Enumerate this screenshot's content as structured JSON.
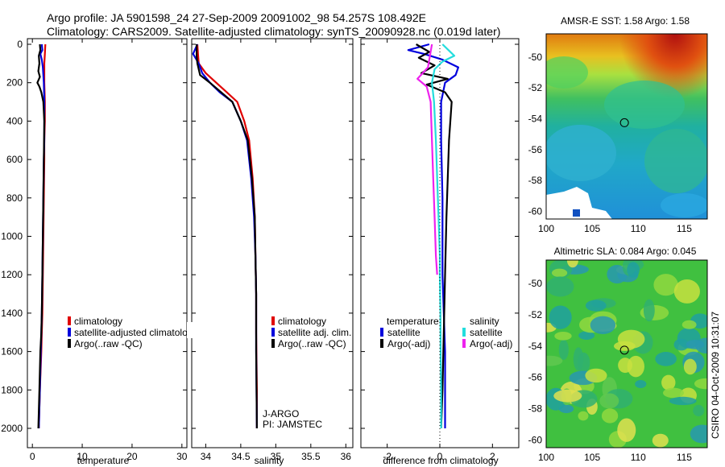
{
  "header": {
    "line1": "Argo profile: JA 5901598_24 27-Sep-2009 20091002_98 54.257S 108.492E",
    "line2": "Climatology: CARS2009. Satellite-adjusted climatology: synTS_20090928.nc (0.019d later)"
  },
  "credit": "CSIRO 04-Oct-2009 10:31:07",
  "colors": {
    "climatology": "#e00000",
    "satellite": "#0000dd",
    "argo": "#000000",
    "sal_satellite": "#22dddd",
    "sal_argo": "#ee22ee"
  },
  "chart_data": [
    {
      "type": "line",
      "id": "temperature",
      "xlabel": "temperature",
      "ylabel": "",
      "xlim": [
        -1,
        31
      ],
      "ylim": [
        0,
        2050
      ],
      "y_inverted": true,
      "xticks": [
        0,
        10,
        20,
        30
      ],
      "yticks": [
        0,
        200,
        400,
        600,
        800,
        1000,
        1200,
        1400,
        1600,
        1800,
        2000
      ],
      "series": [
        {
          "name": "climatology",
          "color_key": "climatology",
          "x": [
            2.6,
            2.5,
            2.4,
            2.4,
            2.5,
            2.5,
            2.4,
            2.4,
            2.3,
            2.2,
            2.1,
            2.0,
            1.9,
            1.8,
            1.5,
            1.3
          ],
          "y": [
            0,
            50,
            100,
            200,
            300,
            400,
            500,
            600,
            800,
            1000,
            1200,
            1400,
            1500,
            1600,
            1800,
            2000
          ]
        },
        {
          "name": "satellite-adjusted climatology",
          "color_key": "satellite",
          "x": [
            1.9,
            2.0,
            1.6,
            1.9,
            2.1,
            2.3,
            2.4,
            2.4,
            2.4,
            2.3,
            2.2,
            2.1,
            2.0,
            1.9,
            1.7,
            1.5,
            1.3
          ],
          "y": [
            0,
            30,
            50,
            80,
            120,
            200,
            300,
            400,
            500,
            600,
            800,
            1000,
            1200,
            1400,
            1600,
            1800,
            2000
          ]
        },
        {
          "name": "Argo(..raw -QC)",
          "color_key": "argo",
          "x": [
            1.5,
            1.6,
            1.3,
            1.4,
            1.2,
            1.5,
            1.0,
            1.4,
            1.8,
            2.2,
            2.4,
            2.3,
            2.2,
            2.1,
            2.0,
            1.9,
            1.8,
            1.6,
            1.4,
            1.2
          ],
          "y": [
            0,
            30,
            60,
            100,
            140,
            170,
            200,
            220,
            250,
            300,
            400,
            600,
            800,
            1000,
            1200,
            1400,
            1500,
            1600,
            1800,
            2000
          ]
        }
      ],
      "legend": [
        "climatology",
        "satellite-adjusted climatolog",
        "Argo(..raw -QC)"
      ]
    },
    {
      "type": "line",
      "id": "salinity",
      "xlabel": "salinity",
      "ylabel": "",
      "xlim": [
        33.8,
        36.1
      ],
      "ylim": [
        0,
        2050
      ],
      "y_inverted": true,
      "xticks": [
        34,
        34.5,
        35,
        35.5,
        36
      ],
      "annotations": [
        "J-ARGO",
        "PI: JAMSTEC"
      ],
      "series": [
        {
          "name": "climatology",
          "color_key": "climatology",
          "x": [
            33.88,
            33.89,
            33.9,
            34.0,
            34.15,
            34.3,
            34.45,
            34.55,
            34.62,
            34.67,
            34.7,
            34.71,
            34.72,
            34.72,
            34.73,
            34.73
          ],
          "y": [
            0,
            50,
            100,
            150,
            200,
            250,
            300,
            400,
            500,
            700,
            900,
            1100,
            1300,
            1500,
            1800,
            2000
          ]
        },
        {
          "name": "satellite adj. clim.",
          "color_key": "satellite",
          "x": [
            33.88,
            33.82,
            33.9,
            33.95,
            34.06,
            34.2,
            34.38,
            34.5,
            34.59,
            34.65,
            34.69,
            34.71,
            34.72,
            34.72,
            34.73
          ],
          "y": [
            0,
            50,
            100,
            150,
            200,
            250,
            300,
            400,
            500,
            700,
            900,
            1100,
            1300,
            1600,
            2000
          ]
        },
        {
          "name": "Argo(..raw -QC)",
          "color_key": "argo",
          "x": [
            33.87,
            33.87,
            33.88,
            33.92,
            34.06,
            34.22,
            34.38,
            34.5,
            34.6,
            34.66,
            34.7,
            34.71,
            34.72,
            34.72,
            34.73
          ],
          "y": [
            0,
            60,
            100,
            160,
            200,
            250,
            300,
            400,
            500,
            700,
            900,
            1100,
            1300,
            1600,
            2000
          ]
        }
      ],
      "legend": [
        "climatology",
        "satellite adj. clim.",
        "Argo(..raw -QC)"
      ]
    },
    {
      "type": "line",
      "id": "difference",
      "xlabel": "difference from climatology",
      "ylabel": "",
      "xlim": [
        -3,
        3
      ],
      "ylim": [
        0,
        2050
      ],
      "y_inverted": true,
      "xticks": [
        -2,
        0,
        2
      ],
      "series": [
        {
          "name": "temperature satellite",
          "color_key": "satellite",
          "x": [
            -0.4,
            -1.2,
            -0.6,
            0.1,
            0.7,
            0.6,
            0.2,
            0.05,
            0.05,
            0.1,
            0.1,
            0.1,
            0.15,
            0.2,
            0.2,
            0.2
          ],
          "y": [
            0,
            30,
            50,
            80,
            120,
            160,
            200,
            300,
            500,
            800,
            1000,
            1200,
            1400,
            1600,
            1800,
            2000
          ]
        },
        {
          "name": "temperature Argo(-adj)",
          "color_key": "argo",
          "x": [
            -0.9,
            -0.4,
            -0.8,
            -0.2,
            -0.7,
            0.3,
            -0.5,
            0.2,
            0.45,
            0.35,
            0.3,
            0.25,
            0.2,
            0.15,
            0.1,
            0.05
          ],
          "y": [
            0,
            40,
            70,
            110,
            150,
            180,
            210,
            250,
            300,
            500,
            700,
            900,
            1200,
            1500,
            1800,
            2000
          ]
        },
        {
          "name": "salinity satellite",
          "color_key": "sal_satellite",
          "x": [
            0.1,
            0.55,
            0.1,
            -0.2,
            -0.3,
            -0.22,
            -0.15,
            -0.1,
            -0.05,
            0,
            0,
            0.02,
            0.03,
            0.05,
            0.05
          ],
          "y": [
            0,
            60,
            90,
            130,
            200,
            300,
            500,
            700,
            900,
            1100,
            1200,
            1400,
            1600,
            1800,
            2000
          ]
        },
        {
          "name": "salinity Argo(-adj)",
          "color_key": "sal_argo",
          "x": [
            -0.3,
            -0.4,
            -0.45,
            -0.85,
            -0.5,
            -0.35,
            -0.3,
            -0.25,
            -0.2,
            -0.15,
            -0.1
          ],
          "y": [
            0,
            80,
            120,
            180,
            220,
            300,
            500,
            700,
            900,
            1100,
            1200
          ]
        }
      ],
      "legend_titles": [
        "temperature",
        "salinity"
      ],
      "legend_left": [
        "satellite",
        "Argo(-adj)"
      ],
      "legend_right": [
        "satellite",
        "Argo(-adj)"
      ]
    },
    {
      "type": "heatmap",
      "id": "sst_map",
      "title": "AMSR-E SST: 1.58 Argo: 1.58",
      "xlim": [
        100,
        117.5
      ],
      "ylim": [
        -60.5,
        -48.5
      ],
      "xticks": [
        100,
        105,
        110,
        115
      ],
      "yticks": [
        -50,
        -52,
        -54,
        -56,
        -58,
        -60
      ],
      "marker": {
        "lon": 108.5,
        "lat": -54.26
      }
    },
    {
      "type": "heatmap",
      "id": "sla_map",
      "title": "Altimetric SLA: 0.084 Argo: 0.045",
      "xlim": [
        100,
        117.5
      ],
      "ylim": [
        -60.5,
        -48.5
      ],
      "xticks": [
        100,
        105,
        110,
        115
      ],
      "yticks": [
        -50,
        -52,
        -54,
        -56,
        -58,
        -60
      ],
      "marker": {
        "lon": 108.5,
        "lat": -54.26
      }
    }
  ]
}
